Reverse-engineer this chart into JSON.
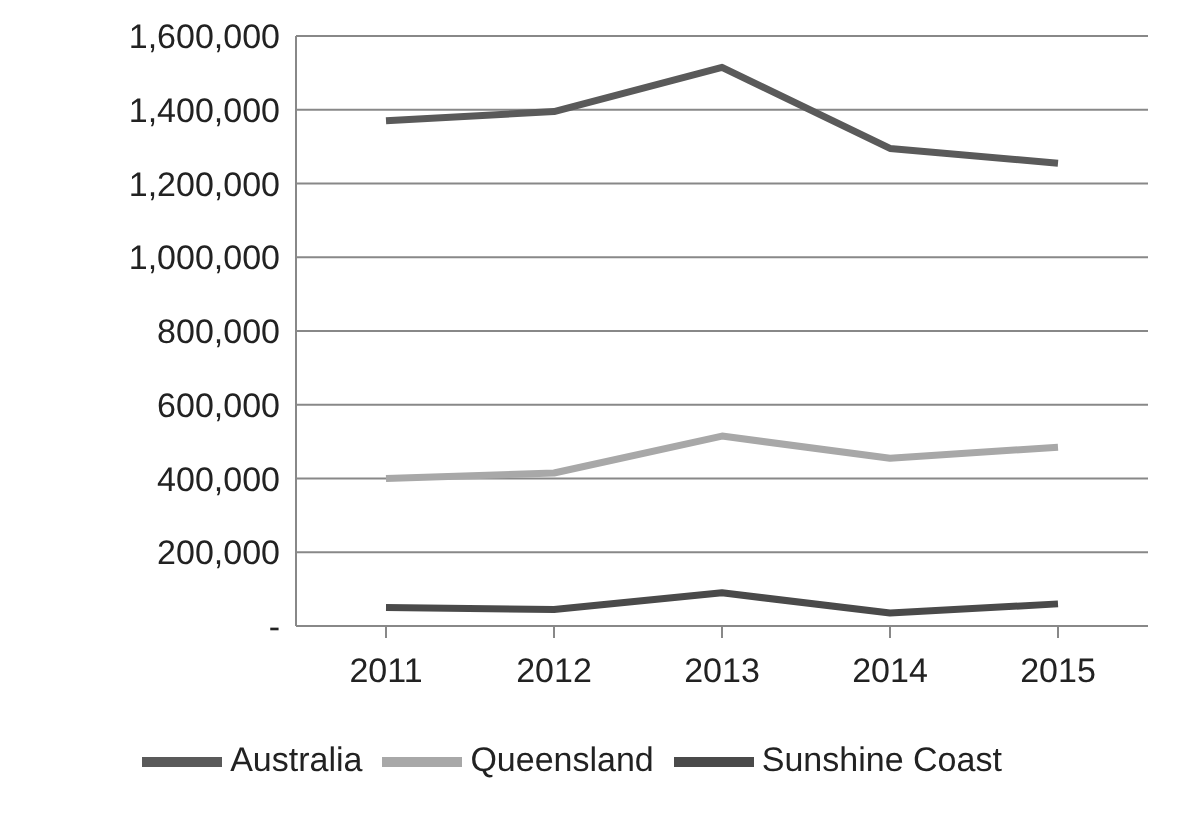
{
  "chart_data": {
    "type": "line",
    "categories": [
      "2011",
      "2012",
      "2013",
      "2014",
      "2015"
    ],
    "series": [
      {
        "name": "Australia",
        "color": "#5a5a5a",
        "values": [
          1370000,
          1395000,
          1515000,
          1295000,
          1255000
        ]
      },
      {
        "name": "Queensland",
        "color": "#a8a8a8",
        "values": [
          400000,
          415000,
          515000,
          455000,
          485000
        ]
      },
      {
        "name": "Sunshine Coast",
        "color": "#4a4a4a",
        "values": [
          50000,
          45000,
          90000,
          35000,
          60000
        ]
      }
    ],
    "ylim": [
      0,
      1600000
    ],
    "yticks": [
      {
        "value": 0,
        "label": "-"
      },
      {
        "value": 200000,
        "label": "200,000"
      },
      {
        "value": 400000,
        "label": "400,000"
      },
      {
        "value": 600000,
        "label": "600,000"
      },
      {
        "value": 800000,
        "label": "800,000"
      },
      {
        "value": 1000000,
        "label": "1,000,000"
      },
      {
        "value": 1200000,
        "label": "1,200,000"
      },
      {
        "value": 1400000,
        "label": "1,400,000"
      },
      {
        "value": 1600000,
        "label": "1,600,000"
      }
    ],
    "grid": "y",
    "legend": "bottom",
    "marker": "none",
    "line_style": "solid"
  }
}
